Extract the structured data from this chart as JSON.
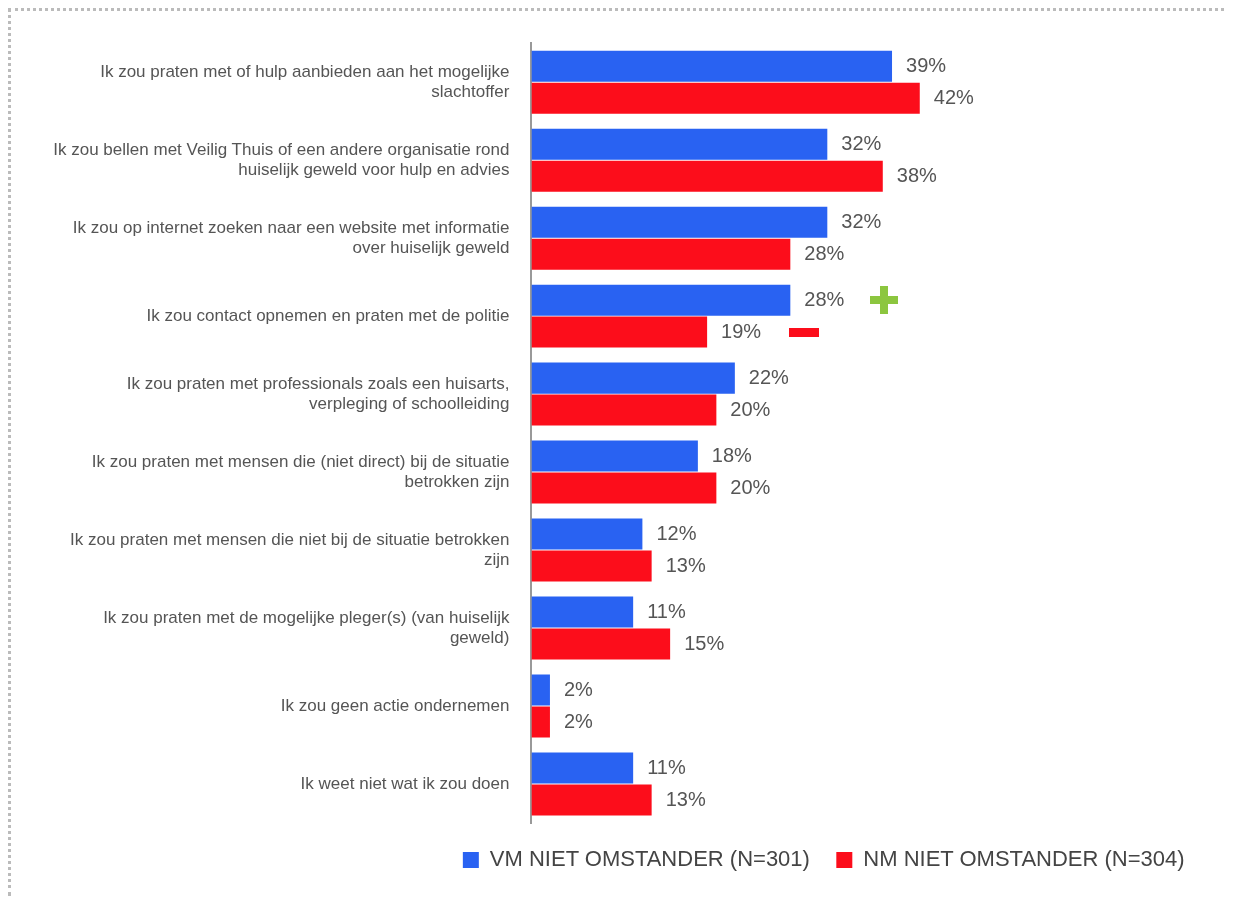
{
  "chart_data": {
    "type": "bar",
    "orientation": "horizontal",
    "categories": [
      "Ik zou praten met of hulp aanbieden aan het mogelijke slachtoffer",
      "Ik zou bellen met Veilig Thuis of een andere organisatie rond huiselijk geweld voor hulp en advies",
      "Ik zou op internet zoeken naar een website met informatie over huiselijk geweld",
      "Ik zou contact opnemen en praten met de politie",
      "Ik zou praten met professionals zoals een huisarts, verpleging of schoolleiding",
      "Ik zou praten met mensen die (niet direct) bij de situatie betrokken zijn",
      "Ik zou praten met mensen die niet bij de situatie betrokken zijn",
      "Ik zou praten met de mogelijke pleger(s) (van huiselijk geweld)",
      "Ik zou geen actie ondernemen",
      "Ik weet niet wat ik zou doen"
    ],
    "series": [
      {
        "name": "VM NIET OMSTANDER (N=301)",
        "color": "#2962f2",
        "values": [
          39,
          32,
          32,
          28,
          22,
          18,
          12,
          11,
          2,
          11
        ],
        "value_labels": [
          "39%",
          "32%",
          "32%",
          "28%",
          "22%",
          "18%",
          "12%",
          "11%",
          "2%",
          "11%"
        ]
      },
      {
        "name": "NM NIET OMSTANDER (N=304)",
        "color": "#fc0d1b",
        "values": [
          42,
          38,
          28,
          19,
          20,
          20,
          13,
          15,
          2,
          13
        ],
        "value_labels": [
          "42%",
          "38%",
          "28%",
          "19%",
          "20%",
          "20%",
          "13%",
          "15%",
          "2%",
          "13%"
        ]
      }
    ],
    "grid": false,
    "legend": "bottom right",
    "tick_labels": "y"
  }
}
